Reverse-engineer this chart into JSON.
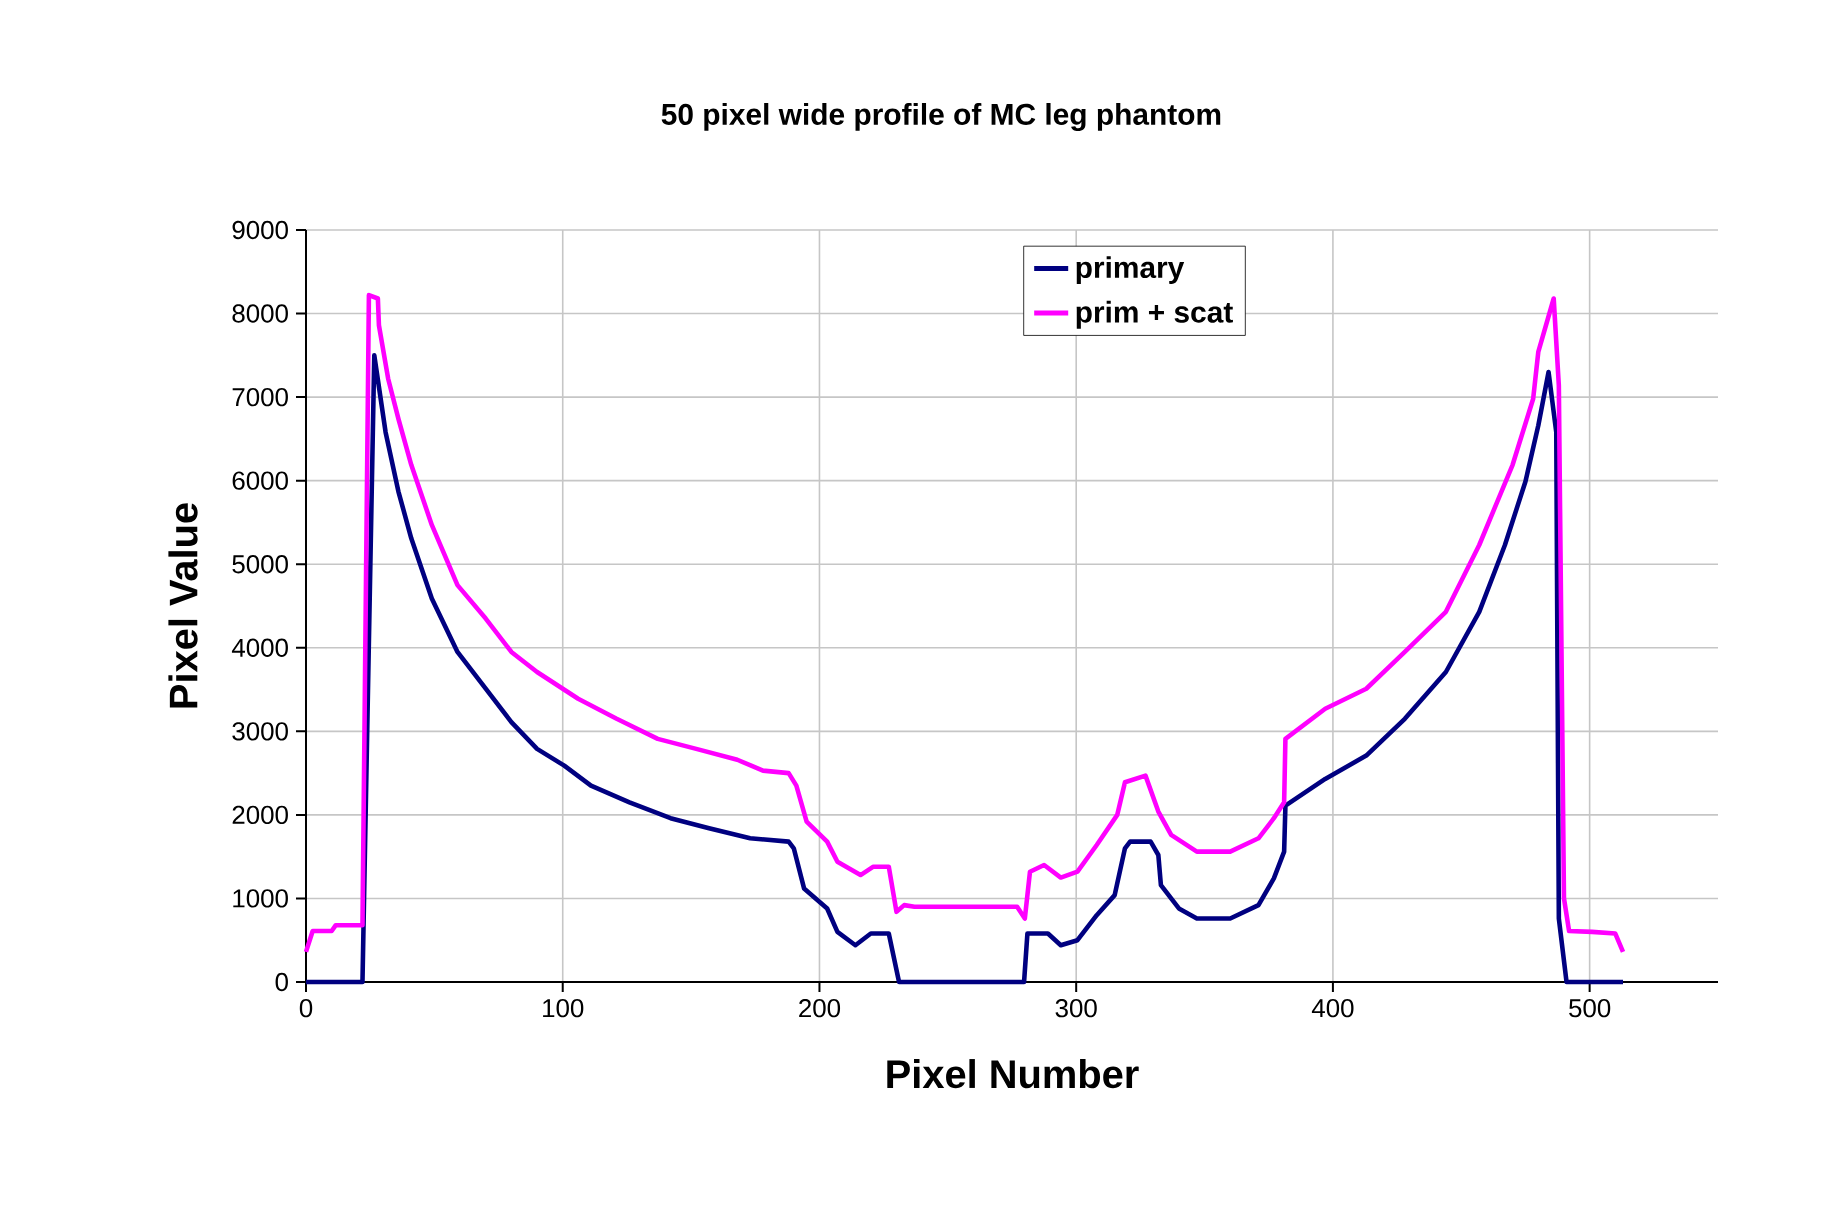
{
  "chart_data": {
    "type": "line",
    "title": "50 pixel wide profile of MC leg phantom",
    "xlabel": "Pixel Number",
    "ylabel": "Pixel Value",
    "xlim": [
      0,
      550
    ],
    "xticks": [
      0,
      100,
      200,
      300,
      400,
      500
    ],
    "ylim": [
      0,
      9000
    ],
    "yticks": [
      0,
      1000,
      2000,
      3000,
      4000,
      5000,
      6000,
      7000,
      8000,
      9000
    ],
    "grid": true,
    "legend": "top right",
    "series": [
      {
        "name": "primary",
        "color": "#000080",
        "x": [
          0,
          22,
          26.6,
          31,
          36,
          41,
          49,
          59,
          70,
          80,
          90,
          100.6,
          111,
          126,
          142,
          157,
          173,
          188,
          190,
          194,
          203,
          207,
          214,
          220,
          227,
          231,
          279.7,
          281,
          289,
          294,
          300.5,
          308,
          315,
          319,
          321,
          329,
          332,
          333,
          340,
          347,
          360,
          371,
          377,
          381,
          381.5,
          397,
          413,
          428,
          444,
          457,
          467,
          475,
          480,
          484,
          487,
          488,
          491,
          513
        ],
        "values": [
          0,
          0,
          7500,
          6580,
          5870,
          5310,
          4590,
          3950,
          3510,
          3110,
          2790,
          2590,
          2350,
          2150,
          1960,
          1840,
          1720,
          1680,
          1600,
          1120,
          880,
          600,
          440,
          580,
          580,
          0,
          0,
          580,
          580,
          440,
          500,
          800,
          1040,
          1600,
          1680,
          1680,
          1520,
          1160,
          880,
          760,
          760,
          920,
          1240,
          1560,
          2110,
          2430,
          2710,
          3150,
          3710,
          4430,
          5230,
          5990,
          6660,
          7300,
          6580,
          760,
          0,
          0
        ]
      },
      {
        "name": "prim + scat",
        "color": "#ff00ff",
        "x": [
          0,
          2.6,
          10,
          11.6,
          22,
          24.5,
          28,
          28.4,
          32,
          36,
          41,
          49,
          59,
          70,
          80,
          90,
          106,
          121,
          137,
          152,
          168,
          178,
          188,
          191,
          195,
          203,
          207,
          216,
          221,
          227,
          230,
          233,
          237,
          277,
          280,
          282,
          287.5,
          294,
          300.5,
          308,
          316,
          319,
          327,
          332,
          337,
          347,
          360,
          371,
          377,
          381,
          381.5,
          397,
          413,
          428,
          444,
          457,
          470,
          478,
          480,
          486,
          488,
          490,
          492,
          501,
          510,
          513
        ],
        "values": [
          360,
          610,
          610,
          680,
          680,
          8220,
          8180,
          7860,
          7220,
          6740,
          6190,
          5470,
          4750,
          4350,
          3950,
          3710,
          3390,
          3150,
          2910,
          2790,
          2660,
          2530,
          2500,
          2350,
          1920,
          1680,
          1440,
          1280,
          1380,
          1380,
          840,
          920,
          900,
          900,
          760,
          1320,
          1400,
          1250,
          1320,
          1640,
          2000,
          2390,
          2470,
          2040,
          1760,
          1560,
          1560,
          1720,
          1960,
          2150,
          2910,
          3270,
          3510,
          3950,
          4430,
          5230,
          6190,
          6980,
          7540,
          8180,
          7140,
          1000,
          610,
          600,
          580,
          360
        ]
      }
    ]
  }
}
